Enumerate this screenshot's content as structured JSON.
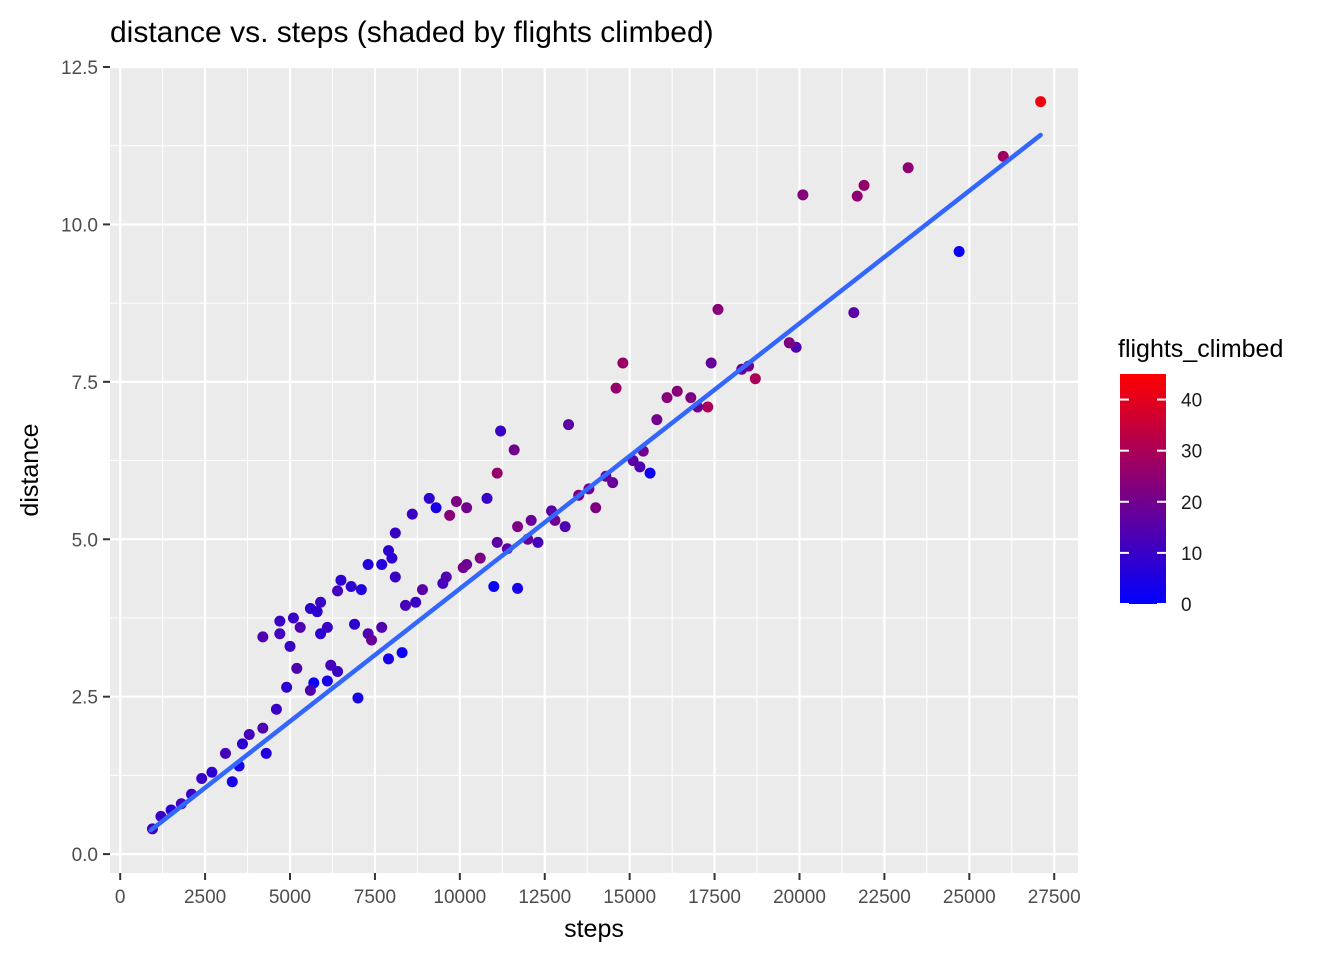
{
  "chart_data": {
    "type": "scatter",
    "title": "distance vs. steps (shaded by flights climbed)",
    "xlabel": "steps",
    "ylabel": "distance",
    "xlim": [
      -300,
      28200
    ],
    "ylim": [
      -0.3,
      12.5
    ],
    "x_ticks": [
      0,
      2500,
      5000,
      7500,
      10000,
      12500,
      15000,
      17500,
      20000,
      22500,
      25000,
      27500
    ],
    "x_tick_labels": [
      "0",
      "2500",
      "5000",
      "7500",
      "10000",
      "12500",
      "15000",
      "17500",
      "20000",
      "22500",
      "25000",
      "27500"
    ],
    "y_ticks": [
      0,
      2.5,
      5,
      7.5,
      10,
      12.5
    ],
    "y_tick_labels": [
      "0.0",
      "2.5",
      "5.0",
      "7.5",
      "10.0",
      "12.5"
    ],
    "grid": true,
    "legend": {
      "title": "flights_climbed",
      "placement": "right",
      "min": 0,
      "max": 45,
      "ticks": [
        0,
        10,
        20,
        30,
        40
      ],
      "tick_labels": [
        "0",
        "10",
        "20",
        "30",
        "40"
      ],
      "low_color": "#0000ff",
      "high_color": "#ff0000"
    },
    "trend_line": {
      "points": [
        [
          900,
          0.38
        ],
        [
          27100,
          11.42
        ]
      ],
      "color": "#3366ff"
    },
    "series": [
      {
        "points": [
          [
            27100,
            11.95,
            42
          ],
          [
            26000,
            11.08,
            28
          ],
          [
            23200,
            10.9,
            25
          ],
          [
            21900,
            10.62,
            26
          ],
          [
            21700,
            10.45,
            25
          ],
          [
            20100,
            10.47,
            24
          ],
          [
            24700,
            9.57,
            2
          ],
          [
            21600,
            8.6,
            16
          ],
          [
            17600,
            8.65,
            24
          ],
          [
            19900,
            8.05,
            14
          ],
          [
            19700,
            8.12,
            22
          ],
          [
            18700,
            7.55,
            30
          ],
          [
            18500,
            7.75,
            20
          ],
          [
            18300,
            7.7,
            18
          ],
          [
            17400,
            7.8,
            18
          ],
          [
            17300,
            7.1,
            30
          ],
          [
            14800,
            7.8,
            27
          ],
          [
            14600,
            7.4,
            26
          ],
          [
            16100,
            7.25,
            24
          ],
          [
            16400,
            7.35,
            24
          ],
          [
            16800,
            7.25,
            22
          ],
          [
            17000,
            7.1,
            20
          ],
          [
            15800,
            6.9,
            20
          ],
          [
            15400,
            6.4,
            20
          ],
          [
            15600,
            6.05,
            2
          ],
          [
            13200,
            6.82,
            16
          ],
          [
            11200,
            6.72,
            10
          ],
          [
            11600,
            6.42,
            20
          ],
          [
            11100,
            6.05,
            26
          ],
          [
            10800,
            5.65,
            10
          ],
          [
            10200,
            5.5,
            20
          ],
          [
            9900,
            5.6,
            22
          ],
          [
            9700,
            5.38,
            24
          ],
          [
            9300,
            5.5,
            4
          ],
          [
            9100,
            5.65,
            8
          ],
          [
            8600,
            5.4,
            10
          ],
          [
            8100,
            5.1,
            10
          ],
          [
            7900,
            4.82,
            8
          ],
          [
            8000,
            4.7,
            8
          ],
          [
            7700,
            4.6,
            6
          ],
          [
            8100,
            4.4,
            10
          ],
          [
            7300,
            4.6,
            6
          ],
          [
            7100,
            4.2,
            6
          ],
          [
            6800,
            4.25,
            8
          ],
          [
            6500,
            4.35,
            8
          ],
          [
            6400,
            4.18,
            12
          ],
          [
            5900,
            4.0,
            10
          ],
          [
            5800,
            3.85,
            8
          ],
          [
            5600,
            3.9,
            8
          ],
          [
            5900,
            3.5,
            8
          ],
          [
            5300,
            3.6,
            14
          ],
          [
            5000,
            3.3,
            10
          ],
          [
            4700,
            3.5,
            12
          ],
          [
            4200,
            3.45,
            14
          ],
          [
            4700,
            3.7,
            10
          ],
          [
            5100,
            3.75,
            10
          ],
          [
            6100,
            3.6,
            10
          ],
          [
            6900,
            3.65,
            8
          ],
          [
            7300,
            3.5,
            14
          ],
          [
            7700,
            3.6,
            14
          ],
          [
            11000,
            4.25,
            2
          ],
          [
            11700,
            4.22,
            4
          ],
          [
            12300,
            4.95,
            12
          ],
          [
            13100,
            5.2,
            14
          ],
          [
            13500,
            5.7,
            22
          ],
          [
            14500,
            5.9,
            18
          ],
          [
            15300,
            6.15,
            14
          ],
          [
            14000,
            5.5,
            22
          ],
          [
            12800,
            5.3,
            20
          ],
          [
            12000,
            5.0,
            18
          ],
          [
            11700,
            5.2,
            22
          ],
          [
            11100,
            4.95,
            16
          ],
          [
            10200,
            4.6,
            18
          ],
          [
            9500,
            4.3,
            12
          ],
          [
            8700,
            4.0,
            10
          ],
          [
            8300,
            3.2,
            2
          ],
          [
            7900,
            3.1,
            4
          ],
          [
            7000,
            2.48,
            4
          ],
          [
            6400,
            2.9,
            10
          ],
          [
            6100,
            2.75,
            4
          ],
          [
            5700,
            2.72,
            2
          ],
          [
            5200,
            2.95,
            14
          ],
          [
            4900,
            2.65,
            8
          ],
          [
            4600,
            2.3,
            10
          ],
          [
            4200,
            2.0,
            14
          ],
          [
            3800,
            1.9,
            12
          ],
          [
            3600,
            1.75,
            8
          ],
          [
            3500,
            1.4,
            4
          ],
          [
            3100,
            1.6,
            12
          ],
          [
            2700,
            1.3,
            8
          ],
          [
            2400,
            1.2,
            10
          ],
          [
            2100,
            0.95,
            10
          ],
          [
            1800,
            0.8,
            12
          ],
          [
            1500,
            0.7,
            8
          ],
          [
            1200,
            0.6,
            10
          ],
          [
            950,
            0.4,
            12
          ],
          [
            4300,
            1.6,
            6
          ],
          [
            3300,
            1.15,
            4
          ],
          [
            5600,
            2.6,
            14
          ],
          [
            6200,
            3.0,
            12
          ],
          [
            7400,
            3.4,
            18
          ],
          [
            8400,
            3.95,
            12
          ],
          [
            8900,
            4.2,
            16
          ],
          [
            9600,
            4.4,
            14
          ],
          [
            10100,
            4.55,
            20
          ],
          [
            10600,
            4.7,
            22
          ],
          [
            11400,
            4.85,
            16
          ],
          [
            12100,
            5.3,
            18
          ],
          [
            12700,
            5.45,
            16
          ],
          [
            13800,
            5.8,
            20
          ],
          [
            14300,
            6.0,
            18
          ],
          [
            15100,
            6.25,
            16
          ]
        ]
      }
    ]
  }
}
